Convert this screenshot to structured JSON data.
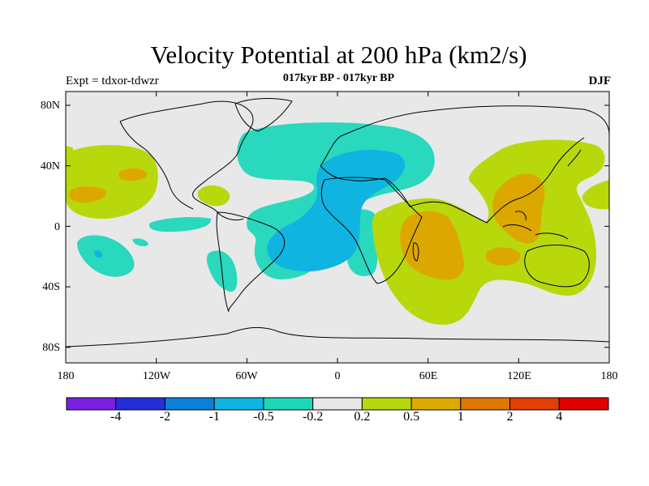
{
  "title": "Velocity Potential at 200 hPa (km2/s)",
  "subtitle": "017kyr BP - 017kyr BP",
  "left_label": "Expt = tdxor-tdwzr",
  "right_label": "DJF",
  "lat_labels": [
    "80N",
    "40N",
    "0",
    "40S",
    "80S"
  ],
  "lon_labels": [
    "180",
    "120W",
    "60W",
    "0",
    "60E",
    "120E",
    "180"
  ],
  "colorbar": {
    "labels": [
      "-4",
      "-2",
      "-1",
      "-0.5",
      "-0.2",
      "0.2",
      "0.5",
      "1",
      "2",
      "4"
    ],
    "colors": [
      "#7b1fe0",
      "#2430d6",
      "#0a80d8",
      "#10b4e0",
      "#1fd6b8",
      "#e8e8e8",
      "#b5d90c",
      "#dcaa00",
      "#e07800",
      "#e04000",
      "#e00000"
    ]
  },
  "map_colors": {
    "background": "#e8e8e8",
    "cyan": "#2ad8be",
    "blue": "#10b4e0",
    "lime": "#b8d80c",
    "gold": "#dca800",
    "coast": "#000000"
  }
}
